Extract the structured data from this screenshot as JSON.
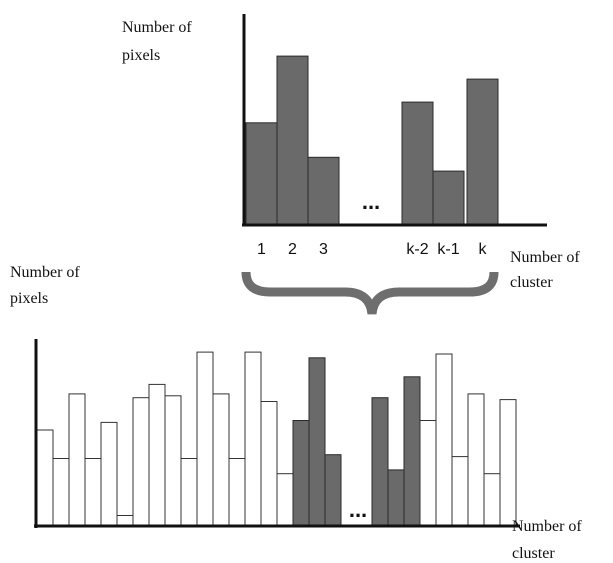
{
  "top_chart": {
    "ylabel_line1": "Number of",
    "ylabel_line2": "pixels",
    "xlabel_line1": "Number of",
    "xlabel_line2": "cluster",
    "tick_labels": [
      "1",
      "2",
      "3",
      "k-2",
      "k-1",
      "k"
    ],
    "ellipsis": "...",
    "relative_heights": [
      0.44,
      0.73,
      0.29,
      0.53,
      0.23,
      0.63
    ],
    "bar_color": "#6a6a6a"
  },
  "bottom_chart": {
    "ylabel_line1": "Number of",
    "ylabel_line2": "pixels",
    "xlabel_line1": "Number of",
    "xlabel_line2": "cluster",
    "ellipsis": "...",
    "bar_color": "#6a6a6a",
    "outline_color": "#ffffff",
    "left_bars": [
      0.5,
      0.35,
      0.69,
      0.35,
      0.54,
      0.05,
      0.67,
      0.74,
      0.68,
      0.35,
      0.91,
      0.69,
      0.35,
      0.91,
      0.65,
      0.27
    ],
    "highlight_bars_1": [
      0.55,
      0.88,
      0.37
    ],
    "highlight_bars_2": [
      0.67,
      0.29,
      0.78
    ],
    "right_bars": [
      0.55,
      0.9,
      0.36,
      0.69,
      0.27,
      0.66
    ]
  },
  "brace": {
    "color": "#6e6e6e"
  }
}
